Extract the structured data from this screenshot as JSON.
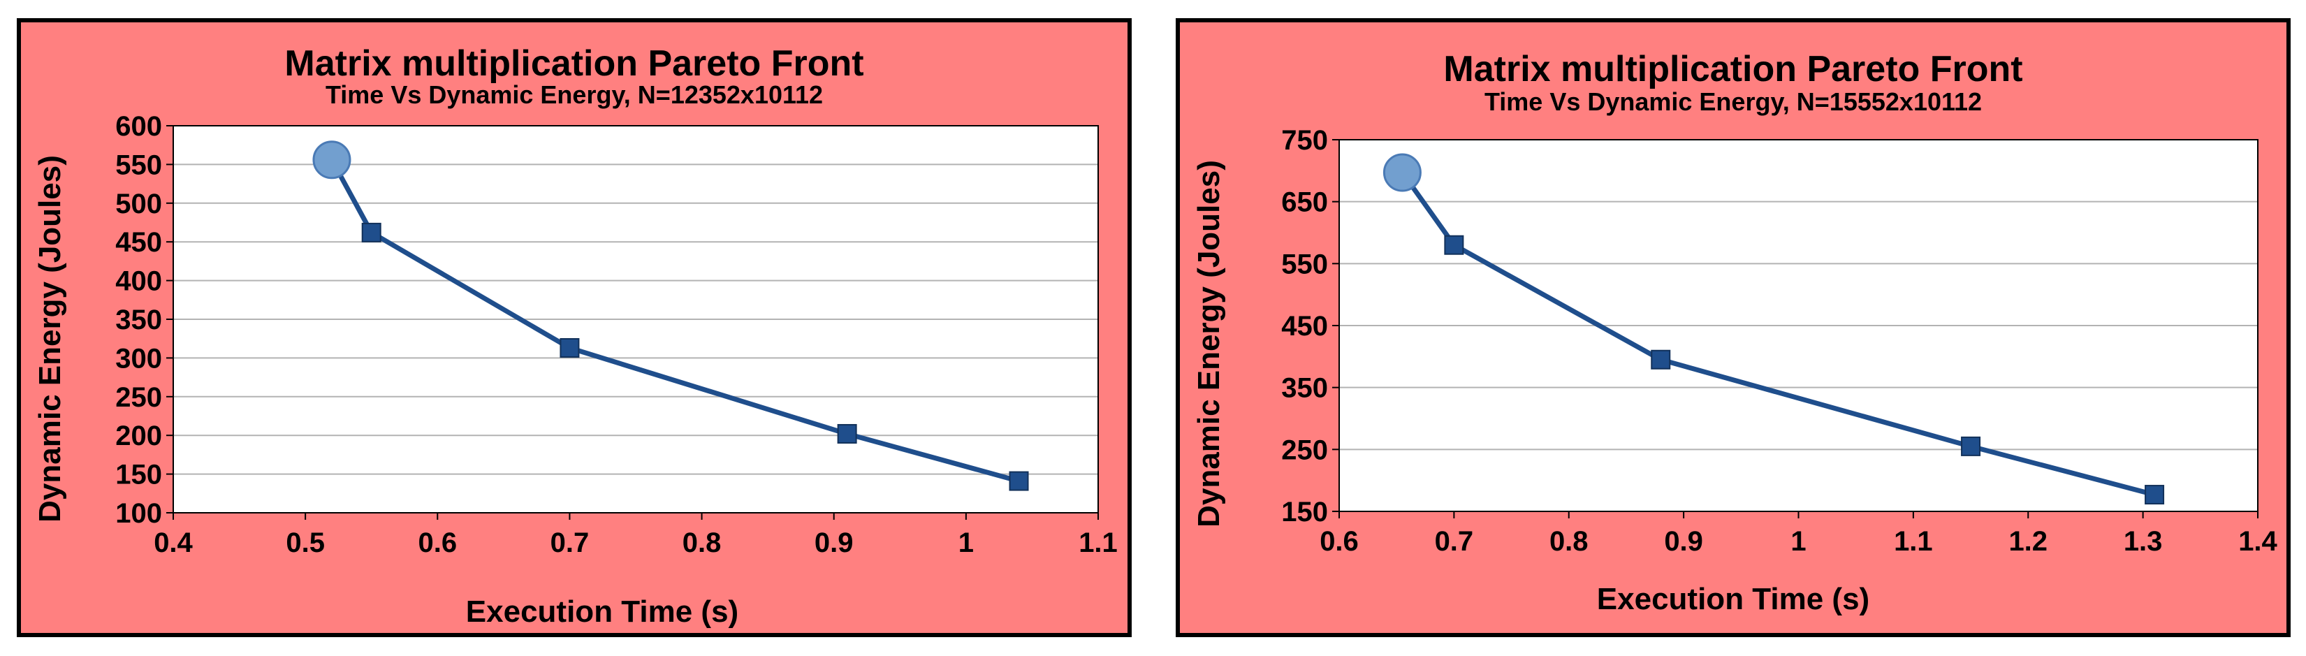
{
  "chart_data": [
    {
      "type": "line",
      "title": "Matrix multiplication Pareto Front",
      "subtitle": "Time Vs Dynamic Energy, N=12352x10112",
      "xlabel": "Execution Time (s)",
      "ylabel": "Dynamic Energy (Joules)",
      "xlim": [
        0.4,
        1.1
      ],
      "ylim": [
        100,
        600
      ],
      "xticks": [
        0.4,
        0.5,
        0.6,
        0.7,
        0.8,
        0.9,
        1,
        1.1
      ],
      "yticks": [
        100,
        150,
        200,
        250,
        300,
        350,
        400,
        450,
        500,
        550,
        600
      ],
      "grid": "horizontal",
      "series": [
        {
          "x": [
            0.52,
            0.55,
            0.7,
            0.91,
            1.04
          ],
          "y": [
            556,
            462,
            313,
            202,
            141
          ],
          "color": "#1f4e8c",
          "highlight_color": "#729fcf"
        }
      ]
    },
    {
      "type": "line",
      "title": "Matrix multiplication Pareto Front",
      "subtitle": "Time Vs Dynamic Energy, N=15552x10112",
      "xlabel": "Execution Time (s)",
      "ylabel": "Dynamic Energy (Joules)",
      "xlim": [
        0.6,
        1.4
      ],
      "ylim": [
        150,
        750
      ],
      "xticks": [
        0.6,
        0.7,
        0.8,
        0.9,
        1,
        1.1,
        1.2,
        1.3,
        1.4
      ],
      "yticks": [
        150,
        250,
        350,
        450,
        550,
        650,
        750
      ],
      "grid": "horizontal",
      "series": [
        {
          "x": [
            0.655,
            0.7,
            0.88,
            1.15,
            1.31
          ],
          "y": [
            697,
            580,
            395,
            255,
            177
          ],
          "color": "#1f4e8c",
          "highlight_color": "#729fcf"
        }
      ]
    }
  ]
}
